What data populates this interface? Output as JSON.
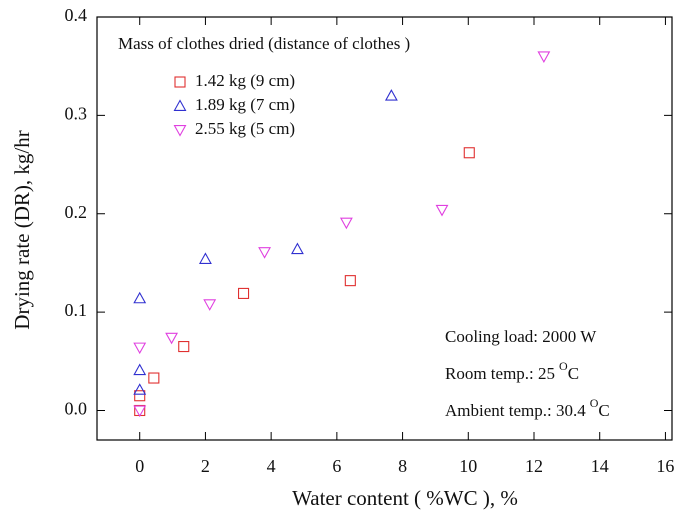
{
  "chart_data": {
    "type": "scatter",
    "xlabel": "Water content ( %WC ), %",
    "ylabel": "Drying rate (DR), kg/hr",
    "legend_title": "Mass of clothes dried (distance of clothes )",
    "series": [
      {
        "name": "1.42 kg (9 cm)",
        "color": "#e03030",
        "marker": "square",
        "x": [
          0,
          0,
          0.43,
          1.34,
          3.16,
          6.41,
          10.03
        ],
        "values": [
          0.0,
          0.015,
          0.033,
          0.065,
          0.119,
          0.132,
          0.262
        ]
      },
      {
        "name": "1.89 kg (7 cm)",
        "color": "#3030d0",
        "marker": "triangle-up",
        "x": [
          0,
          0,
          0,
          2.0,
          4.8,
          7.66
        ],
        "values": [
          0.021,
          0.041,
          0.114,
          0.154,
          0.164,
          0.32
        ]
      },
      {
        "name": "2.55 kg (5 cm)",
        "color": "#e040e0",
        "marker": "triangle-down",
        "x": [
          0,
          0,
          0.97,
          2.13,
          3.8,
          6.29,
          9.2,
          12.3
        ],
        "values": [
          0.0,
          0.064,
          0.074,
          0.108,
          0.161,
          0.191,
          0.204,
          0.36
        ]
      }
    ],
    "annotations": [
      {
        "text": "Cooling load: 2000 W"
      },
      {
        "text": "Room temp.: 25",
        "sup": "O",
        "unit": "C"
      },
      {
        "text": "Ambient temp.: 30.4",
        "sup": "O",
        "unit": "C"
      }
    ],
    "xlim": [
      -1.3,
      16.2
    ],
    "ylim": [
      -0.03,
      0.4
    ],
    "xticks": [
      0,
      2,
      4,
      6,
      8,
      10,
      12,
      14,
      16
    ],
    "yticks": [
      {
        "value": 0,
        "label": "0.0"
      },
      0.1,
      0.2,
      0.3,
      0.4
    ]
  }
}
